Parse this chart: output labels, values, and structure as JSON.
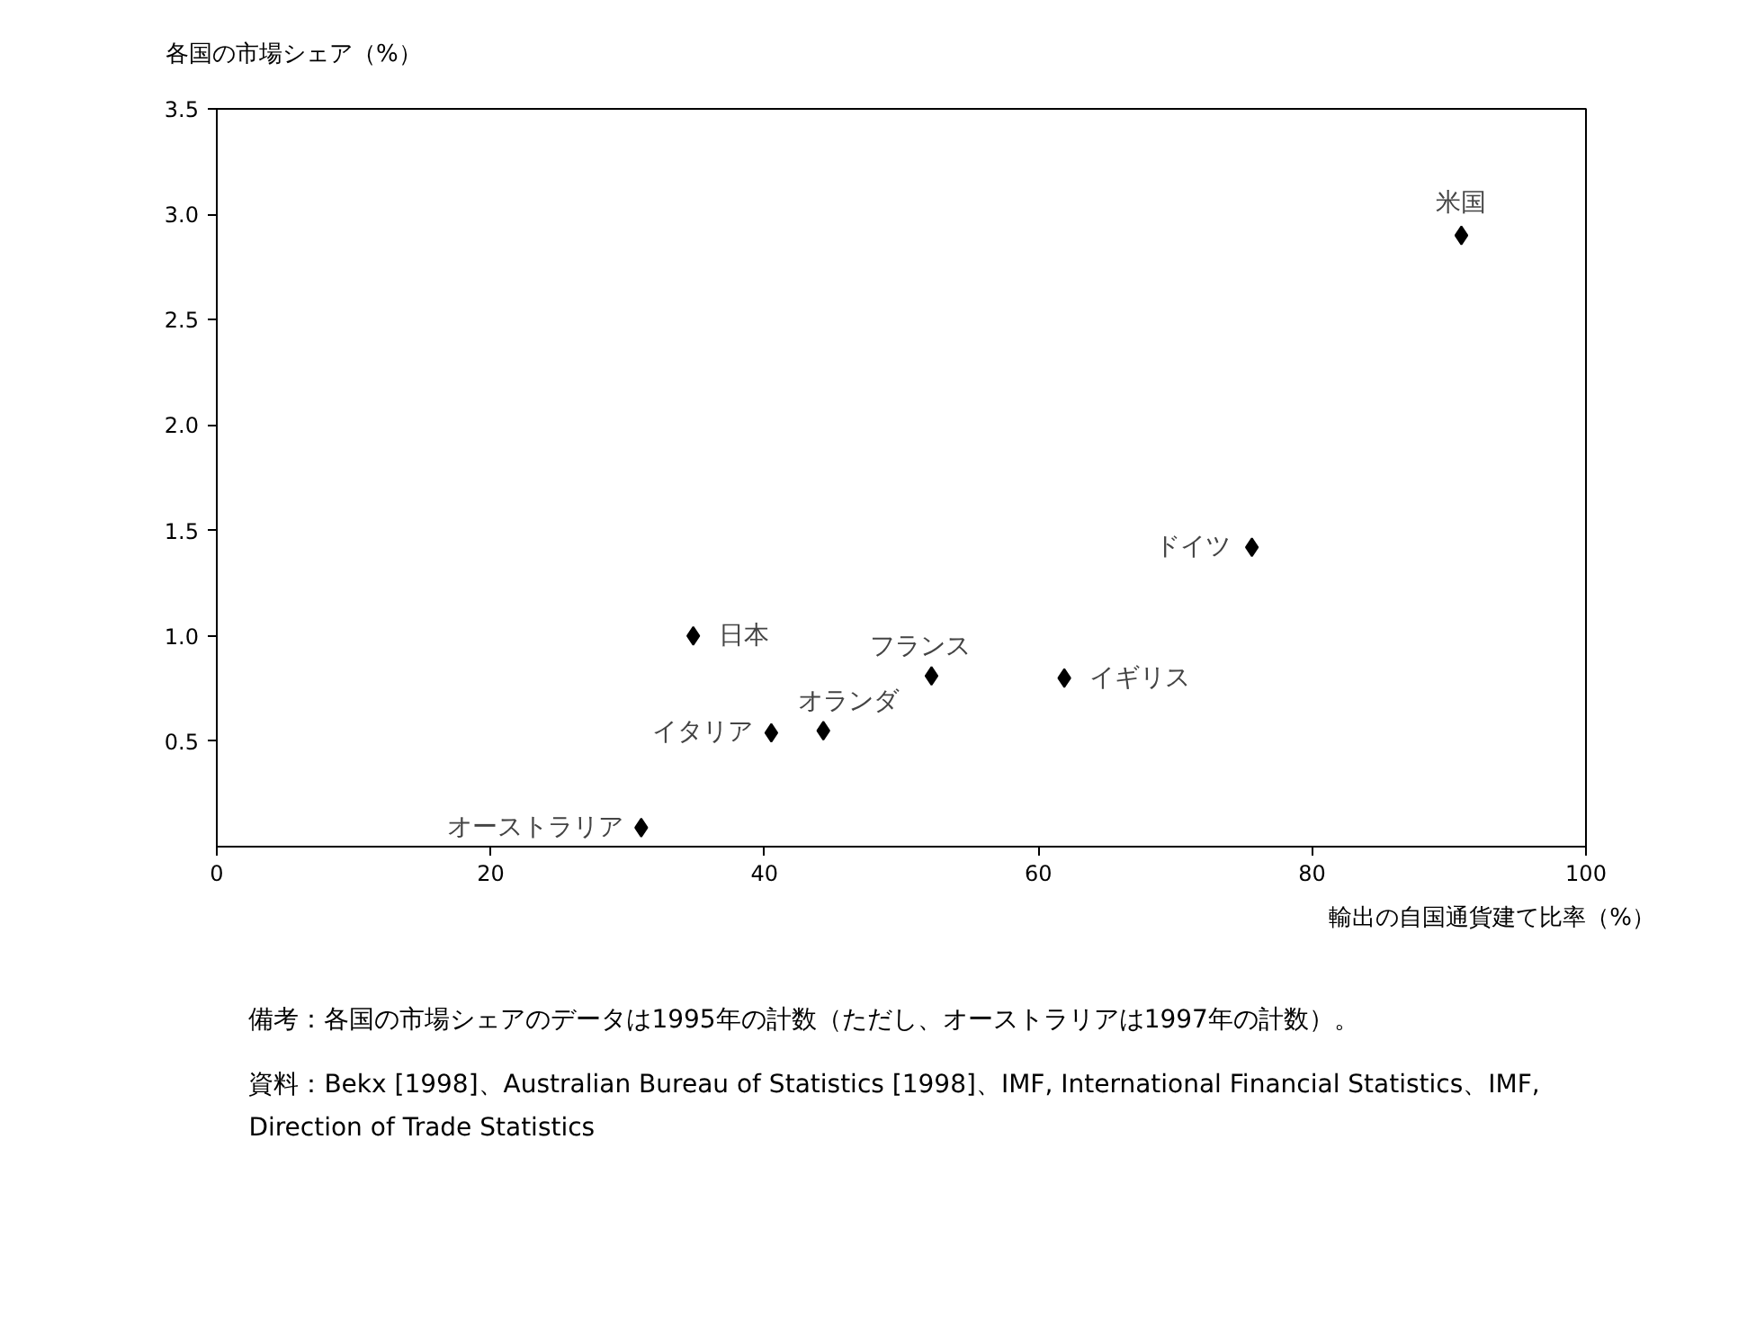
{
  "chart_data": {
    "type": "scatter",
    "xlabel": "輸出の自国通貨建て比率（%）",
    "ylabel": "各国の市場シェア（%）",
    "x": [
      90.9,
      75.6,
      61.9,
      52.2,
      44.3,
      40.5,
      34.8,
      31.0
    ],
    "values": [
      2.9,
      1.42,
      0.8,
      0.81,
      0.55,
      0.54,
      1.0,
      0.09
    ],
    "color": "#000000",
    "marker": "diamond",
    "xlim": [
      0,
      100
    ],
    "xticks": [
      0,
      20,
      40,
      60,
      80,
      100
    ],
    "ylim": [
      0,
      3.5
    ],
    "yticks": [
      0.5,
      {
        "value": 1,
        "label": "1.0"
      },
      1.5,
      {
        "value": 2,
        "label": "2.0"
      },
      2.5,
      {
        "value": 3,
        "label": "3.0"
      },
      3.5
    ],
    "grid": false,
    "annotations": [
      {
        "text": "米国",
        "x": 90.9,
        "y": 2.9
      },
      {
        "text": "ドイツ",
        "x": 75.6,
        "y": 1.42
      },
      {
        "text": "イギリス",
        "x": 61.9,
        "y": 0.8
      },
      {
        "text": "フランス",
        "x": 52.2,
        "y": 0.81
      },
      {
        "text": "オランダ",
        "x": 44.3,
        "y": 0.55
      },
      {
        "text": "イタリア",
        "x": 40.5,
        "y": 0.54
      },
      {
        "text": "日本",
        "x": 34.8,
        "y": 1.0
      },
      {
        "text": "オーストラリア",
        "x": 31.0,
        "y": 0.09
      },
      "備考：各国の市場シェアのデータは1995年の計数（ただし、オーストラリアは1997年の計数）。",
      "資料：Bekx [1998]、Australian Bureau of Statistics [1998]、IMF, International Financial Statistics、IMF, Direction of Trade Statistics"
    ]
  }
}
